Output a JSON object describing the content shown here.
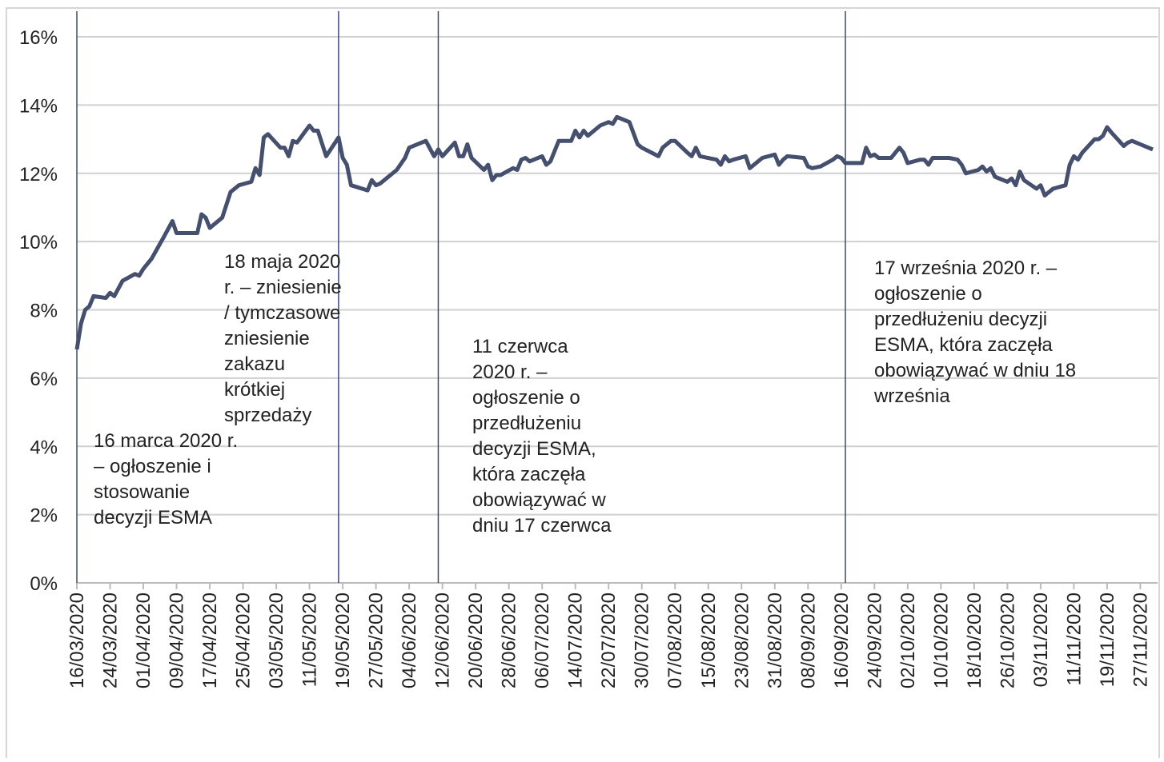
{
  "chart_data": {
    "type": "line",
    "color": "#454f6e",
    "x": [
      "16/03/2020",
      "17/03/2020",
      "18/03/2020",
      "19/03/2020",
      "20/03/2020",
      "23/03/2020",
      "24/03/2020",
      "25/03/2020",
      "27/03/2020",
      "30/03/2020",
      "31/03/2020",
      "01/04/2020",
      "03/04/2020",
      "06/04/2020",
      "08/04/2020",
      "09/04/2020",
      "14/04/2020",
      "15/04/2020",
      "16/04/2020",
      "17/04/2020",
      "20/04/2020",
      "22/04/2020",
      "24/04/2020",
      "27/04/2020",
      "28/04/2020",
      "29/04/2020",
      "30/04/2020",
      "01/05/2020",
      "04/05/2020",
      "05/05/2020",
      "06/05/2020",
      "07/05/2020",
      "08/05/2020",
      "11/05/2020",
      "12/05/2020",
      "13/05/2020",
      "15/05/2020",
      "18/05/2020",
      "19/05/2020",
      "20/05/2020",
      "21/05/2020",
      "25/05/2020",
      "26/05/2020",
      "27/05/2020",
      "28/05/2020",
      "01/06/2020",
      "03/06/2020",
      "04/06/2020",
      "08/06/2020",
      "10/06/2020",
      "11/06/2020",
      "12/06/2020",
      "15/06/2020",
      "16/06/2020",
      "17/06/2020",
      "18/06/2020",
      "19/06/2020",
      "22/06/2020",
      "23/06/2020",
      "24/06/2020",
      "25/06/2020",
      "26/06/2020",
      "29/06/2020",
      "30/06/2020",
      "01/07/2020",
      "02/07/2020",
      "03/07/2020",
      "06/07/2020",
      "07/07/2020",
      "08/07/2020",
      "10/07/2020",
      "13/07/2020",
      "14/07/2020",
      "15/07/2020",
      "16/07/2020",
      "17/07/2020",
      "20/07/2020",
      "22/07/2020",
      "23/07/2020",
      "24/07/2020",
      "27/07/2020",
      "29/07/2020",
      "30/07/2020",
      "03/08/2020",
      "04/08/2020",
      "06/08/2020",
      "07/08/2020",
      "10/08/2020",
      "11/08/2020",
      "12/08/2020",
      "13/08/2020",
      "17/08/2020",
      "18/08/2020",
      "19/08/2020",
      "20/08/2020",
      "21/08/2020",
      "24/08/2020",
      "25/08/2020",
      "26/08/2020",
      "27/08/2020",
      "28/08/2020",
      "31/08/2020",
      "01/09/2020",
      "02/09/2020",
      "03/09/2020",
      "07/09/2020",
      "08/09/2020",
      "09/09/2020",
      "11/09/2020",
      "14/09/2020",
      "15/09/2020",
      "16/09/2020",
      "17/09/2020",
      "21/09/2020",
      "22/09/2020",
      "23/09/2020",
      "24/09/2020",
      "25/09/2020",
      "28/09/2020",
      "30/09/2020",
      "01/10/2020",
      "02/10/2020",
      "05/10/2020",
      "06/10/2020",
      "07/10/2020",
      "08/10/2020",
      "09/10/2020",
      "12/10/2020",
      "14/10/2020",
      "15/10/2020",
      "16/10/2020",
      "19/10/2020",
      "20/10/2020",
      "21/10/2020",
      "22/10/2020",
      "23/10/2020",
      "26/10/2020",
      "27/10/2020",
      "28/10/2020",
      "29/10/2020",
      "30/10/2020",
      "02/11/2020",
      "03/11/2020",
      "04/11/2020",
      "05/11/2020",
      "06/11/2020",
      "09/11/2020",
      "10/11/2020",
      "11/11/2020",
      "12/11/2020",
      "13/11/2020",
      "16/11/2020",
      "17/11/2020",
      "18/11/2020",
      "19/11/2020",
      "20/11/2020",
      "23/11/2020",
      "24/11/2020",
      "25/11/2020",
      "26/11/2020",
      "27/11/2020",
      "30/11/2020"
    ],
    "values": [
      6.84,
      7.6,
      8.0,
      8.1,
      8.4,
      8.35,
      8.5,
      8.4,
      8.85,
      9.05,
      9.0,
      9.2,
      9.5,
      10.15,
      10.6,
      10.25,
      10.25,
      10.8,
      10.7,
      10.4,
      10.7,
      11.45,
      11.65,
      11.75,
      12.15,
      11.95,
      13.05,
      13.15,
      12.75,
      12.75,
      12.5,
      12.95,
      12.9,
      13.4,
      13.25,
      13.25,
      12.5,
      13.05,
      12.45,
      12.25,
      11.65,
      11.5,
      11.8,
      11.65,
      11.7,
      12.1,
      12.45,
      12.75,
      12.95,
      12.5,
      12.7,
      12.5,
      12.9,
      12.5,
      12.5,
      12.85,
      12.45,
      12.1,
      12.25,
      11.8,
      11.95,
      11.95,
      12.15,
      12.1,
      12.4,
      12.45,
      12.35,
      12.5,
      12.25,
      12.35,
      12.95,
      12.95,
      13.25,
      13.05,
      13.25,
      13.1,
      13.4,
      13.5,
      13.45,
      13.65,
      13.5,
      12.85,
      12.75,
      12.5,
      12.75,
      12.95,
      12.95,
      12.6,
      12.5,
      12.75,
      12.5,
      12.4,
      12.25,
      12.5,
      12.35,
      12.4,
      12.5,
      12.15,
      12.25,
      12.35,
      12.45,
      12.55,
      12.25,
      12.4,
      12.5,
      12.45,
      12.2,
      12.15,
      12.2,
      12.4,
      12.5,
      12.45,
      12.3,
      12.3,
      12.75,
      12.5,
      12.55,
      12.45,
      12.45,
      12.75,
      12.6,
      12.3,
      12.4,
      12.4,
      12.25,
      12.45,
      12.45,
      12.45,
      12.4,
      12.25,
      12.0,
      12.1,
      12.2,
      12.05,
      12.15,
      11.9,
      11.75,
      11.85,
      11.65,
      12.05,
      11.8,
      11.55,
      11.65,
      11.35,
      11.45,
      11.55,
      11.65,
      12.25,
      12.5,
      12.4,
      12.6,
      13.0,
      13.0,
      13.1,
      13.35,
      13.2,
      12.8,
      12.9,
      12.95,
      12.9,
      12.85,
      12.7
    ],
    "xlim": [
      "16/03/2020",
      "30/11/2020"
    ],
    "xticks": [
      "16/03/2020",
      "24/03/2020",
      "01/04/2020",
      "09/04/2020",
      "17/04/2020",
      "25/04/2020",
      "03/05/2020",
      "11/05/2020",
      "19/05/2020",
      "27/05/2020",
      "04/06/2020",
      "12/06/2020",
      "20/06/2020",
      "28/06/2020",
      "06/07/2020",
      "14/07/2020",
      "22/07/2020",
      "30/07/2020",
      "07/08/2020",
      "15/08/2020",
      "23/08/2020",
      "31/08/2020",
      "08/09/2020",
      "16/09/2020",
      "24/09/2020",
      "02/10/2020",
      "10/10/2020",
      "18/10/2020",
      "26/10/2020",
      "03/11/2020",
      "11/11/2020",
      "19/11/2020",
      "27/11/2020"
    ],
    "ylim": [
      0,
      16
    ],
    "yticks": [
      {
        "value": 0,
        "label": "0%"
      },
      {
        "value": 2,
        "label": "2%"
      },
      {
        "value": 4,
        "label": "4%"
      },
      {
        "value": 6,
        "label": "6%"
      },
      {
        "value": 8,
        "label": "8%"
      },
      {
        "value": 10,
        "label": "10%"
      },
      {
        "value": 12,
        "label": "12%"
      },
      {
        "value": 14,
        "label": "14%"
      },
      {
        "value": 16,
        "label": "16%"
      }
    ],
    "grid": true,
    "annotations": [
      {
        "x": "16/03/2020",
        "lines": [
          "16 marca 2020 r.",
          "– ogłoszenie i",
          "stosowanie",
          "decyzji ESMA"
        ]
      },
      {
        "x": "18/05/2020",
        "lines": [
          "18 maja 2020",
          "r. – zniesienie",
          "/ tymczasowe",
          "zniesienie",
          "zakazu",
          "krótkiej",
          "sprzedaży"
        ]
      },
      {
        "x": "11/06/2020",
        "lines": [
          "11 czerwca",
          "2020 r. –",
          "ogłoszenie o",
          "przedłużeniu",
          "decyzji ESMA,",
          "która zaczęła",
          "obowiązywać w",
          "dniu 17 czerwca"
        ]
      },
      {
        "x": "17/09/2020",
        "lines": [
          "17 września 2020 r. –",
          "ogłoszenie o",
          "przedłużeniu decyzji",
          "ESMA, która zaczęła",
          "obowiązywać w dniu 18",
          "września"
        ]
      }
    ]
  }
}
